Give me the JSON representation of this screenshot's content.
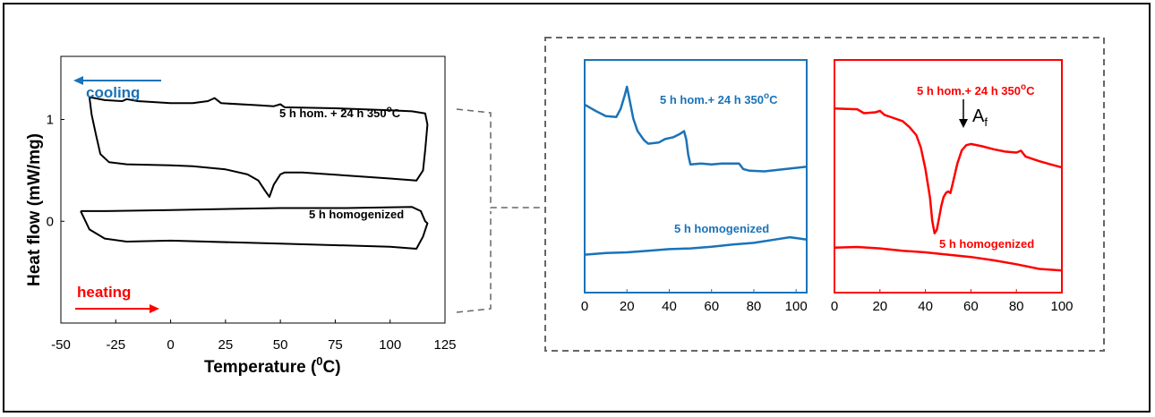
{
  "colors": {
    "left_curves": "#000000",
    "blue": "#1a73b8",
    "red": "#ff0000",
    "dash_box": "#666666"
  },
  "chart_data": [
    {
      "type": "line",
      "xlabel": "Temperature (0C)",
      "xlabel_parts": {
        "main": "Temperature (",
        "sup": "0",
        "tail": "C)"
      },
      "ylabel": "Heat flow (mW/mg)",
      "xlim": [
        -50,
        125
      ],
      "ylim": [
        -1.0,
        1.62
      ],
      "xticks": [
        -50,
        -25,
        0,
        25,
        50,
        75,
        100,
        125
      ],
      "yticks": [
        0,
        1
      ],
      "annotations": {
        "cooling": "cooling",
        "heating": "heating",
        "label_top_main": "5 h hom. + 24 h 350",
        "label_top_sup": "o",
        "label_top_tail": "C",
        "label_bottom": "5 h homogenized"
      },
      "series": [
        {
          "name": "5 h hom. + 24 h 350oC",
          "loop_top": [
            [
              -37,
              1.22
            ],
            [
              -30,
              1.19
            ],
            [
              -22,
              1.18
            ],
            [
              -20,
              1.2
            ],
            [
              -15,
              1.18
            ],
            [
              0,
              1.16
            ],
            [
              10,
              1.16
            ],
            [
              17,
              1.18
            ],
            [
              20,
              1.21
            ],
            [
              23,
              1.16
            ],
            [
              40,
              1.14
            ],
            [
              47,
              1.13
            ],
            [
              50,
              1.15
            ],
            [
              52,
              1.12
            ],
            [
              75,
              1.11
            ],
            [
              100,
              1.09
            ],
            [
              110,
              1.08
            ],
            [
              116,
              1.06
            ],
            [
              117,
              0.95
            ]
          ],
          "loop_right": [
            [
              117,
              0.95
            ],
            [
              116,
              0.7
            ],
            [
              115,
              0.5
            ],
            [
              112,
              0.4
            ]
          ],
          "loop_bottom": [
            [
              112,
              0.4
            ],
            [
              100,
              0.42
            ],
            [
              80,
              0.45
            ],
            [
              60,
              0.48
            ],
            [
              52,
              0.48
            ],
            [
              50,
              0.46
            ],
            [
              47,
              0.36
            ],
            [
              45,
              0.24
            ],
            [
              43,
              0.3
            ],
            [
              40,
              0.4
            ],
            [
              35,
              0.46
            ],
            [
              25,
              0.51
            ],
            [
              10,
              0.54
            ],
            [
              0,
              0.55
            ],
            [
              -20,
              0.56
            ],
            [
              -28,
              0.58
            ],
            [
              -32,
              0.66
            ],
            [
              -34,
              0.85
            ],
            [
              -36,
              1.05
            ],
            [
              -37,
              1.22
            ]
          ]
        },
        {
          "name": "5 h homogenized",
          "loop_top": [
            [
              -41,
              0.1
            ],
            [
              -30,
              0.1
            ],
            [
              0,
              0.11
            ],
            [
              50,
              0.13
            ],
            [
              80,
              0.13
            ],
            [
              110,
              0.14
            ],
            [
              114,
              0.1
            ],
            [
              116,
              0.0
            ],
            [
              117,
              -0.02
            ]
          ],
          "loop_bottom": [
            [
              117,
              -0.02
            ],
            [
              115,
              -0.15
            ],
            [
              112,
              -0.27
            ],
            [
              100,
              -0.25
            ],
            [
              50,
              -0.22
            ],
            [
              0,
              -0.19
            ],
            [
              -20,
              -0.2
            ],
            [
              -30,
              -0.17
            ],
            [
              -37,
              -0.08
            ],
            [
              -41,
              0.1
            ]
          ]
        }
      ]
    },
    {
      "type": "line",
      "xlim": [
        0,
        105
      ],
      "ylim": [
        0,
        1
      ],
      "xticks": [
        0,
        20,
        40,
        60,
        80,
        100
      ],
      "annotations": {
        "label_top_main": "5 h hom.+ 24 h 350",
        "label_top_sup": "o",
        "label_top_tail": "C",
        "label_bottom": "5 h homogenized"
      },
      "series": [
        {
          "name": "5 h hom.+ 24 h 350oC",
          "points": [
            [
              0,
              0.808
            ],
            [
              5,
              0.782
            ],
            [
              10,
              0.759
            ],
            [
              15,
              0.755
            ],
            [
              17,
              0.79
            ],
            [
              19,
              0.85
            ],
            [
              20,
              0.885
            ],
            [
              21,
              0.84
            ],
            [
              23,
              0.748
            ],
            [
              25,
              0.695
            ],
            [
              28,
              0.656
            ],
            [
              30,
              0.64
            ],
            [
              35,
              0.645
            ],
            [
              38,
              0.66
            ],
            [
              42,
              0.668
            ],
            [
              45,
              0.682
            ],
            [
              47,
              0.694
            ],
            [
              48,
              0.66
            ],
            [
              49,
              0.592
            ],
            [
              50,
              0.551
            ],
            [
              55,
              0.555
            ],
            [
              60,
              0.551
            ],
            [
              65,
              0.555
            ],
            [
              70,
              0.555
            ],
            [
              73,
              0.555
            ],
            [
              75,
              0.531
            ],
            [
              78,
              0.524
            ],
            [
              85,
              0.521
            ],
            [
              95,
              0.531
            ],
            [
              105,
              0.541
            ]
          ]
        },
        {
          "name": "5 h homogenized",
          "points": [
            [
              0,
              0.163
            ],
            [
              10,
              0.17
            ],
            [
              20,
              0.173
            ],
            [
              30,
              0.18
            ],
            [
              40,
              0.187
            ],
            [
              50,
              0.19
            ],
            [
              60,
              0.197
            ],
            [
              70,
              0.207
            ],
            [
              80,
              0.214
            ],
            [
              90,
              0.228
            ],
            [
              97,
              0.238
            ],
            [
              105,
              0.228
            ]
          ]
        }
      ]
    },
    {
      "type": "line",
      "xlim": [
        0,
        100
      ],
      "ylim": [
        0,
        1
      ],
      "xticks": [
        0,
        20,
        40,
        60,
        80,
        100
      ],
      "annotations": {
        "label_top_main": "5 h hom.+ 24 h 350",
        "label_top_sup": "o",
        "label_top_tail": "C",
        "label_bottom": "5 h homogenized",
        "af_main": "A",
        "af_sub": "f"
      },
      "series": [
        {
          "name": "5 h hom.+ 24 h 350oC",
          "points": [
            [
              0,
              0.791
            ],
            [
              10,
              0.788
            ],
            [
              13,
              0.771
            ],
            [
              18,
              0.775
            ],
            [
              20,
              0.781
            ],
            [
              22,
              0.764
            ],
            [
              25,
              0.754
            ],
            [
              30,
              0.737
            ],
            [
              33,
              0.711
            ],
            [
              36,
              0.677
            ],
            [
              38,
              0.623
            ],
            [
              40,
              0.531
            ],
            [
              42,
              0.408
            ],
            [
              43,
              0.309
            ],
            [
              44,
              0.255
            ],
            [
              45,
              0.27
            ],
            [
              46,
              0.32
            ],
            [
              47,
              0.374
            ],
            [
              48,
              0.411
            ],
            [
              49,
              0.428
            ],
            [
              50,
              0.435
            ],
            [
              51,
              0.428
            ],
            [
              52,
              0.469
            ],
            [
              54,
              0.554
            ],
            [
              56,
              0.612
            ],
            [
              58,
              0.634
            ],
            [
              60,
              0.639
            ],
            [
              65,
              0.629
            ],
            [
              70,
              0.616
            ],
            [
              75,
              0.606
            ],
            [
              80,
              0.602
            ],
            [
              82,
              0.61
            ],
            [
              84,
              0.585
            ],
            [
              90,
              0.565
            ],
            [
              95,
              0.551
            ],
            [
              100,
              0.538
            ]
          ]
        },
        {
          "name": "5 h homogenized",
          "points": [
            [
              0,
              0.193
            ],
            [
              10,
              0.196
            ],
            [
              20,
              0.19
            ],
            [
              30,
              0.18
            ],
            [
              40,
              0.173
            ],
            [
              50,
              0.163
            ],
            [
              60,
              0.153
            ],
            [
              70,
              0.139
            ],
            [
              80,
              0.122
            ],
            [
              90,
              0.102
            ],
            [
              100,
              0.095
            ]
          ]
        }
      ]
    }
  ]
}
